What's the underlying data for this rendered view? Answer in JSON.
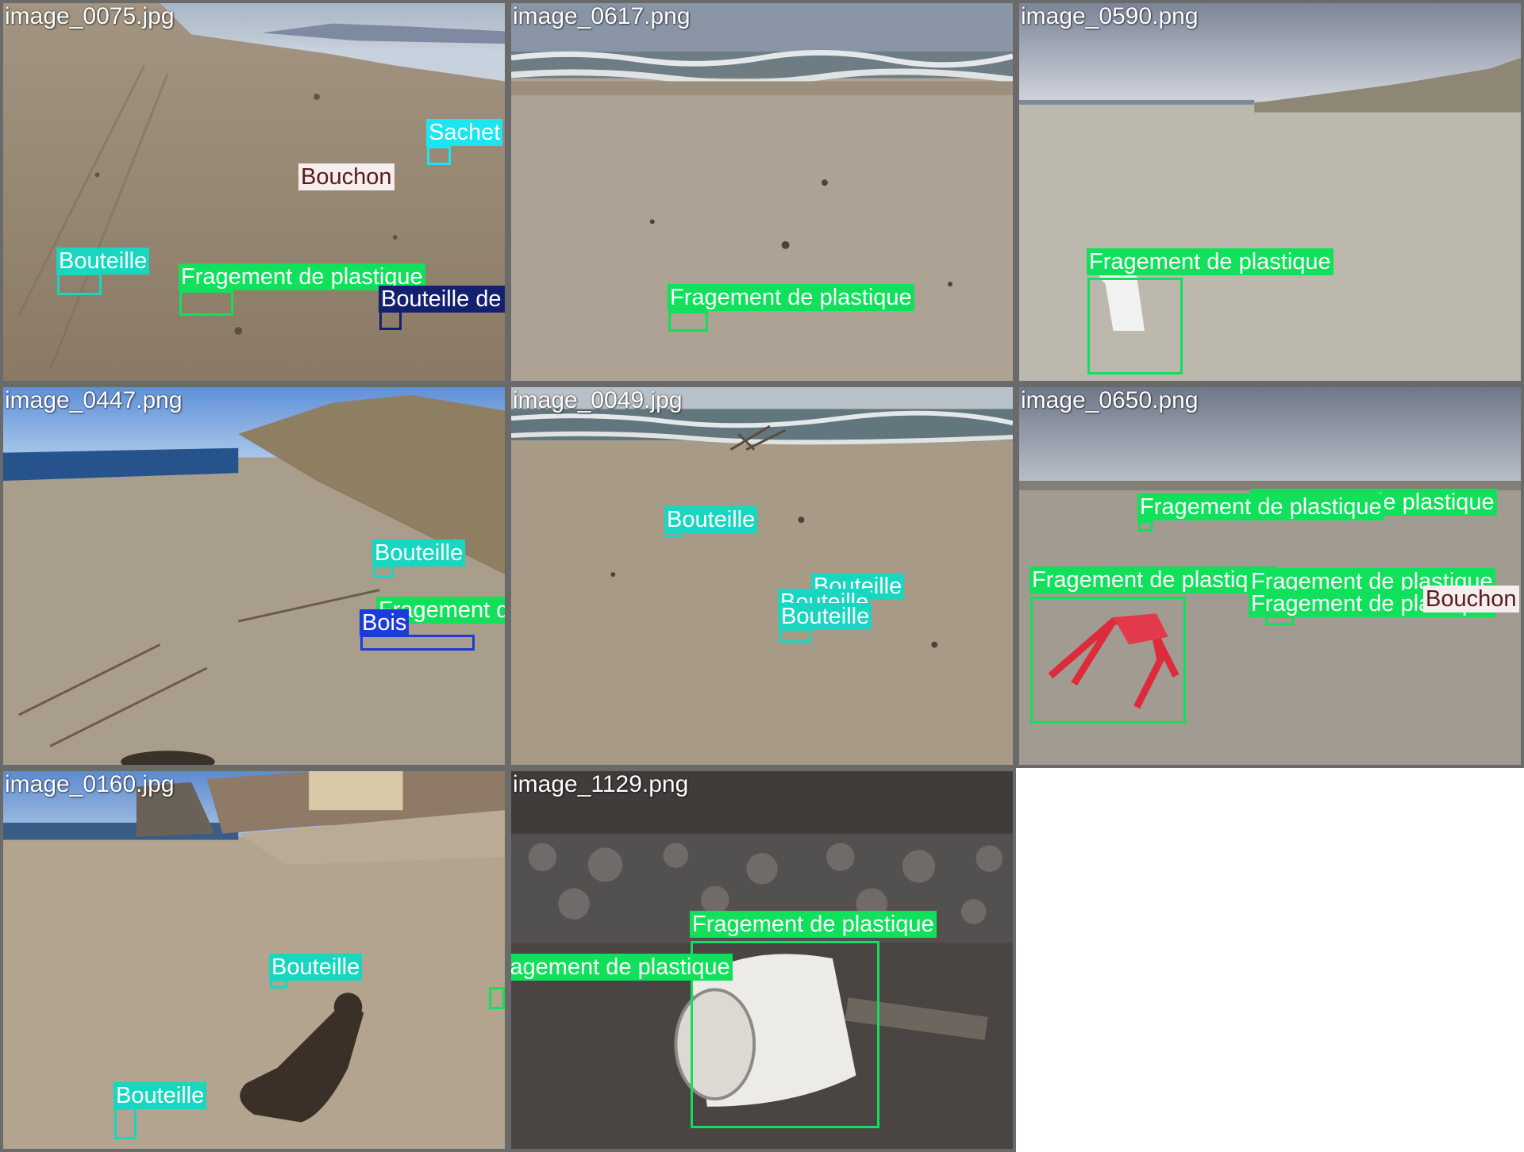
{
  "mosaic": {
    "tiles": [
      {
        "filename": "image_0075.jpg",
        "detections": [
          {
            "label": "Sachet",
            "color": "#19e6f0",
            "text_color": "#ffffff"
          },
          {
            "label": "Bouchon",
            "color": "#f4eeee",
            "text_color": "#5a1a1a"
          },
          {
            "label": "Bouteille",
            "color": "#18d6bf",
            "text_color": "#ffffff"
          },
          {
            "label": "Fragement de plastique",
            "color": "#10e05a",
            "text_color": "#ffffff"
          },
          {
            "label": "Bouteille de verre",
            "color": "#14206e",
            "text_color": "#ffffff"
          }
        ]
      },
      {
        "filename": "image_0617.png",
        "detections": [
          {
            "label": "Fragement de plastique",
            "color": "#10e05a",
            "text_color": "#ffffff"
          }
        ]
      },
      {
        "filename": "image_0590.png",
        "detections": [
          {
            "label": "Fragement de plastique",
            "color": "#10e05a",
            "text_color": "#ffffff"
          }
        ]
      },
      {
        "filename": "image_0447.png",
        "detections": [
          {
            "label": "Bouteille",
            "color": "#18d6bf",
            "text_color": "#ffffff"
          },
          {
            "label": "Fragement de plastique",
            "color": "#10e05a",
            "text_color": "#ffffff"
          },
          {
            "label": "Bois",
            "color": "#1b3bdc",
            "text_color": "#ffffff"
          }
        ]
      },
      {
        "filename": "image_0049.jpg",
        "detections": [
          {
            "label": "Bouteille",
            "color": "#18d6bf",
            "text_color": "#ffffff"
          },
          {
            "label": "Bouteille",
            "color": "#18d6bf",
            "text_color": "#ffffff"
          },
          {
            "label": "Bouteille",
            "color": "#18d6bf",
            "text_color": "#ffffff"
          },
          {
            "label": "Bouteille",
            "color": "#18d6bf",
            "text_color": "#ffffff"
          }
        ]
      },
      {
        "filename": "image_0650.png",
        "detections": [
          {
            "label": "Fragement de plastique",
            "color": "#10e05a",
            "text_color": "#ffffff"
          },
          {
            "label": "Fragement de plastique",
            "color": "#10e05a",
            "text_color": "#ffffff"
          },
          {
            "label": "Fragement de plastique",
            "color": "#10e05a",
            "text_color": "#ffffff"
          },
          {
            "label": "Fragement de plastique",
            "color": "#10e05a",
            "text_color": "#ffffff"
          },
          {
            "label": "Fragement de plastique",
            "color": "#10e05a",
            "text_color": "#ffffff"
          },
          {
            "label": "Bouchon",
            "color": "#f4eeee",
            "text_color": "#5a1a1a"
          }
        ]
      },
      {
        "filename": "image_0160.jpg",
        "detections": [
          {
            "label": "Bouteille",
            "color": "#18d6bf",
            "text_color": "#ffffff"
          },
          {
            "label": "Bouteille",
            "color": "#18d6bf",
            "text_color": "#ffffff"
          },
          {
            "label": "Fragement de plastique",
            "color": "#10e05a",
            "text_color": "#ffffff"
          }
        ]
      },
      {
        "filename": "image_1129.png",
        "detections": [
          {
            "label": "Fragement de plastique",
            "color": "#10e05a",
            "text_color": "#ffffff"
          }
        ]
      }
    ]
  }
}
